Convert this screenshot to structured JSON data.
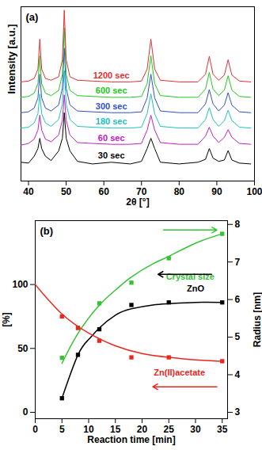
{
  "chart_data": [
    {
      "type": "line",
      "title": "(a)",
      "xlabel": "2θ [°]",
      "ylabel": "Intensity [a.u.]",
      "x": [
        38,
        40,
        41.5,
        42.5,
        43,
        43.5,
        44.5,
        46,
        48,
        49,
        49.5,
        50,
        51,
        53,
        57,
        62,
        67,
        70,
        71.5,
        72.5,
        73.5,
        75,
        80,
        85,
        87,
        88,
        89,
        90.5,
        92,
        93,
        94,
        96,
        99
      ],
      "xlim": [
        38,
        100
      ],
      "xticks": [
        40,
        50,
        60,
        70,
        80,
        90,
        100
      ],
      "ylim": [
        0,
        102
      ],
      "tick_labels": "x",
      "grid": false,
      "series": [
        {
          "name": "30 sec",
          "color": "#000000",
          "values": [
            11,
            10.5,
            14.5,
            19,
            25,
            19,
            14.5,
            12,
            17.6,
            25.1,
            40,
            25.1,
            17.6,
            11.5,
            10,
            11,
            10,
            11.5,
            19,
            25,
            19,
            11,
            10,
            11,
            12.7,
            19,
            13.4,
            11.5,
            12.3,
            17.8,
            12.3,
            10.5,
            10
          ]
        },
        {
          "name": "60 sec",
          "color": "#c020c0",
          "values": [
            21,
            22,
            24.5,
            29.8,
            38.5,
            29.8,
            24.5,
            23,
            26.9,
            35.7,
            50.4,
            35.7,
            26.9,
            22.5,
            22,
            21.5,
            21.5,
            22,
            29.8,
            38.5,
            29.8,
            22.5,
            21.5,
            21.5,
            26.3,
            31.5,
            26.3,
            22.5,
            25.6,
            30.1,
            25.6,
            22,
            21.5
          ]
        },
        {
          "name": "180 sec",
          "color": "#20c0c0",
          "values": [
            31,
            31.5,
            34,
            39.4,
            51,
            39.4,
            34,
            32,
            36,
            45.1,
            64.6,
            45.1,
            36,
            32,
            31.5,
            31,
            31,
            31.5,
            39.4,
            51,
            39.4,
            32,
            31,
            31,
            36,
            43,
            36,
            32,
            35.4,
            41.4,
            35.4,
            31.5,
            31
          ]
        },
        {
          "name": "300 sec",
          "color": "#3050c8",
          "values": [
            40,
            40.5,
            42.7,
            48.6,
            62.5,
            48.6,
            42.7,
            41,
            44.5,
            54.4,
            77.8,
            54.4,
            44.5,
            41,
            40.5,
            40,
            40,
            40.5,
            48.6,
            62.5,
            48.6,
            41,
            40,
            40,
            45.1,
            53.5,
            45.1,
            41,
            44.4,
            51.7,
            44.4,
            40.5,
            40
          ]
        },
        {
          "name": "600 sec",
          "color": "#20c820",
          "values": [
            49,
            49.5,
            51.4,
            57,
            73.3,
            57,
            51.4,
            50,
            53,
            62.4,
            89.7,
            62.4,
            53,
            50,
            49.5,
            49,
            49,
            49.5,
            57,
            73.3,
            57,
            50,
            49,
            49,
            53.8,
            63.6,
            53.8,
            50,
            53.2,
            61.6,
            53.2,
            49.5,
            49
          ]
        },
        {
          "name": "1200 sec",
          "color": "#e03030",
          "values": [
            58,
            58.5,
            60,
            65.5,
            83,
            65.5,
            60,
            59,
            61,
            71,
            100,
            71,
            61,
            59,
            58.5,
            58,
            58,
            58.5,
            65.5,
            83,
            65.5,
            59,
            58,
            58,
            62.5,
            73,
            62.5,
            59,
            62,
            71,
            62,
            58.5,
            58
          ]
        }
      ]
    },
    {
      "type": "line",
      "title": "(b)",
      "xlabel": "Reaction time [min]",
      "ylabel": "[%]",
      "y2label": "Radius [nm]",
      "xlim": [
        0,
        36
      ],
      "xticks": [
        0,
        5,
        10,
        15,
        20,
        25,
        30,
        35
      ],
      "ylim": [
        -5,
        150
      ],
      "yticks": [
        0,
        50,
        100
      ],
      "y2lim": [
        2.83,
        8.1
      ],
      "y2ticks": [
        3,
        4,
        5,
        6,
        7,
        8
      ],
      "grid": false,
      "series": [
        {
          "name": "Crystal size",
          "color": "#33c433",
          "axis": "y2",
          "type": "scatter",
          "marker": "square",
          "x": [
            5,
            8,
            12,
            18,
            25,
            35
          ],
          "values": [
            4.45,
            5.25,
            5.9,
            6.45,
            7.1,
            7.75
          ],
          "fit": {
            "x": [
              5,
              8,
              12,
              15,
              18,
              22,
              25,
              30,
              35
            ],
            "values": [
              4.3,
              5.1,
              5.85,
              6.25,
              6.6,
              6.95,
              7.15,
              7.5,
              7.75
            ]
          }
        },
        {
          "name": "ZnO",
          "color": "#000000",
          "axis": "y",
          "type": "scatter",
          "marker": "square",
          "x": [
            5,
            8,
            12,
            18,
            25,
            35
          ],
          "values": [
            11,
            45,
            65,
            84,
            86,
            86
          ],
          "fit": {
            "x": [
              5,
              8,
              10,
              12,
              15,
              18,
              22,
              25,
              30,
              35
            ],
            "values": [
              11,
              45,
              57,
              66,
              76,
              81,
              84,
              85,
              86,
              86
            ]
          }
        },
        {
          "name": "Zn(II)acetate",
          "color": "#e8281e",
          "axis": "y",
          "type": "scatter",
          "marker": "square",
          "x": [
            5,
            8,
            12,
            18,
            25,
            35
          ],
          "values": [
            75,
            66,
            56,
            43,
            43,
            40
          ],
          "fit": {
            "x": [
              0,
              5,
              10,
              15,
              20,
              25,
              30,
              35
            ],
            "values": [
              100,
              77,
              62,
              52,
              46,
              43,
              41,
              40
            ]
          }
        }
      ],
      "annotations": [
        {
          "text": "Crystal size",
          "x": 29,
          "y": 6.6,
          "axis": "y2",
          "color": "#33c433",
          "arrow": [
            24,
            7.85,
            34,
            7.85
          ]
        },
        {
          "text": "ZnO",
          "x": 30,
          "y": 97,
          "axis": "y",
          "color": "#000000",
          "arrow": [
            33,
            108,
            23,
            108
          ]
        },
        {
          "text": "Zn(II)acetate",
          "x": 27,
          "y": 31,
          "axis": "y",
          "color": "#e8281e",
          "arrow": [
            34,
            20,
            22,
            20
          ]
        }
      ]
    }
  ]
}
